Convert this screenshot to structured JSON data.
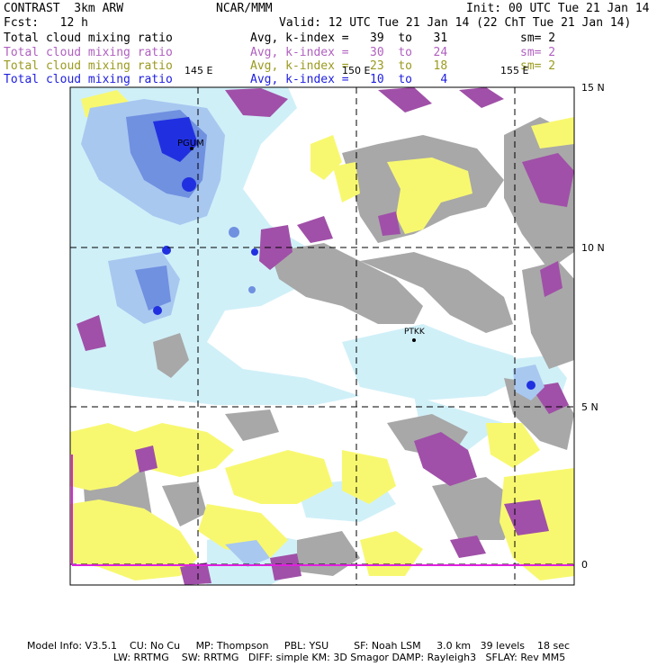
{
  "header": {
    "title_left": "CONTRAST  3km ARW",
    "title_center": "NCAR/MMM",
    "init": "Init: 00 UTC Tue 21 Jan 14",
    "fcst": "Fcst:   12 h",
    "valid": "Valid: 12 UTC Tue 21 Jan 14 (22 ChT Tue 21 Jan 14)"
  },
  "fields": [
    {
      "label": "Total cloud mixing ratio",
      "avg": "Avg, k-index =   39  to   31",
      "sm": "sm= 2",
      "color": "#000000"
    },
    {
      "label": "Total cloud mixing ratio",
      "avg": "Avg, k-index =   30  to   24",
      "sm": "sm= 2",
      "color": "#b060c0"
    },
    {
      "label": "Total cloud mixing ratio",
      "avg": "Avg, k-index =   23  to   18",
      "sm": "sm= 2",
      "color": "#9a9a20"
    },
    {
      "label": "Total cloud mixing ratio",
      "avg": "Avg, k-index =   10  to    4",
      "sm": "",
      "color": "#2020e0"
    }
  ],
  "map": {
    "lon_labels": [
      "145 E",
      "150 E",
      "155 E"
    ],
    "lat_labels": [
      "15 N",
      "10 N",
      "5 N",
      "0"
    ],
    "stations": [
      "PGUM",
      "PTKK"
    ],
    "colors": {
      "gray": "#a8a8a8",
      "purple": "#a050a8",
      "yellow": "#f8f870",
      "lightblue": "#d0f0f8",
      "blue": "#2030e0"
    }
  },
  "footer": {
    "line1": "Model Info: V3.5.1    CU: No Cu     MP: Thompson     PBL: YSU        SF: Noah LSM     3.0 km   39 levels    18 sec",
    "line2": "LW: RRTMG    SW: RRTMG   DIFF: simple KM: 3D Smagor DAMP: Rayleigh3   SFLAY: Rev MM5"
  }
}
